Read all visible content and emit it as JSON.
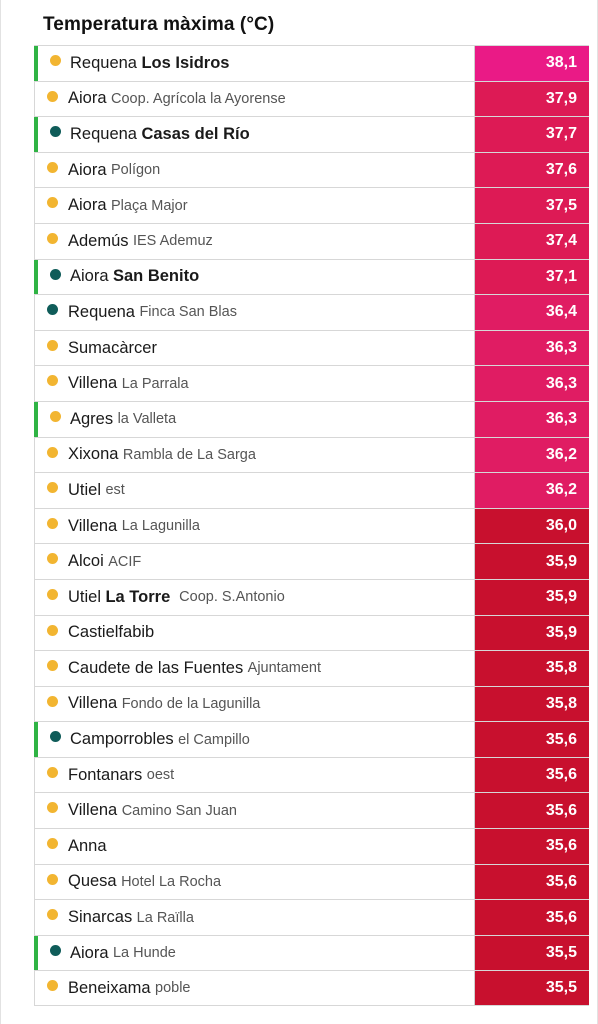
{
  "title": "Temperatura màxima (°C)",
  "colors": {
    "highlight_bar": "#2fb344",
    "marker_yellow": "#f2b531",
    "marker_teal": "#0f5c59",
    "pink_hot": "#e8197b",
    "magenta": "#e01a5a",
    "crimson": "#d81e46",
    "red": "#c8102e"
  },
  "rows": [
    {
      "place": "Requena",
      "detail": "Los Isidros",
      "detail_bold": true,
      "place_bold": false,
      "value": "38,1",
      "marker": "teal-or-yellow:yellow",
      "highlight": true,
      "color": "#ea1a86"
    },
    {
      "place": "Aiora",
      "detail": "Coop. Agrícola la Ayorense",
      "value": "37,9",
      "marker": "yellow",
      "highlight": false,
      "color": "#dd1a55"
    },
    {
      "place": "Requena",
      "detail": "Casas del Río",
      "detail_bold": true,
      "value": "37,7",
      "marker": "teal",
      "highlight": true,
      "color": "#dd1a55"
    },
    {
      "place": "Aiora",
      "detail": "Polígon",
      "value": "37,6",
      "marker": "yellow",
      "highlight": false,
      "color": "#dd1a55"
    },
    {
      "place": "Aiora",
      "detail": "Plaça Major",
      "value": "37,5",
      "marker": "yellow",
      "highlight": false,
      "color": "#dd1a55"
    },
    {
      "place": "Ademús",
      "detail": "IES Ademuz",
      "value": "37,4",
      "marker": "yellow",
      "highlight": false,
      "color": "#dd1a55"
    },
    {
      "place": "Aiora",
      "detail": "San Benito",
      "detail_bold": true,
      "value": "37,1",
      "marker": "teal",
      "highlight": true,
      "color": "#dd1a55"
    },
    {
      "place": "Requena",
      "detail": "Finca San Blas",
      "value": "36,4",
      "marker": "teal",
      "highlight": false,
      "color": "#e01c63"
    },
    {
      "place": "Sumacàrcer",
      "detail": "",
      "value": "36,3",
      "marker": "yellow",
      "highlight": false,
      "color": "#e01c63"
    },
    {
      "place": "Villena",
      "detail": "La Parrala",
      "value": "36,3",
      "marker": "yellow",
      "highlight": false,
      "color": "#e01c63"
    },
    {
      "place": "Agres",
      "detail": "la Valleta",
      "value": "36,3",
      "marker": "yellow",
      "highlight": true,
      "color": "#e01c63"
    },
    {
      "place": "Xixona",
      "detail": "Rambla de La Sarga",
      "value": "36,2",
      "marker": "yellow",
      "highlight": false,
      "color": "#e01c63"
    },
    {
      "place": "Utiel",
      "detail": "est",
      "value": "36,2",
      "marker": "yellow",
      "highlight": false,
      "color": "#e01c63"
    },
    {
      "place": "Villena",
      "detail": "La Lagunilla",
      "value": "36,0",
      "marker": "yellow",
      "highlight": false,
      "color": "#c8102e"
    },
    {
      "place": "Alcoi",
      "detail": "ACIF",
      "value": "35,9",
      "marker": "yellow",
      "highlight": false,
      "color": "#c8102e"
    },
    {
      "place": "Utiel",
      "detail": "La Torre",
      "detail_bold": true,
      "extra": "Coop. S.Antonio",
      "value": "35,9",
      "marker": "yellow",
      "highlight": false,
      "color": "#c8102e"
    },
    {
      "place": "Castielfabib",
      "detail": "",
      "value": "35,9",
      "marker": "yellow",
      "highlight": false,
      "color": "#c8102e"
    },
    {
      "place": "Caudete de las Fuentes",
      "detail": "Ajuntament",
      "value": "35,8",
      "marker": "yellow",
      "highlight": false,
      "color": "#c8102e"
    },
    {
      "place": "Villena",
      "detail": "Fondo de la Lagunilla",
      "value": "35,8",
      "marker": "yellow",
      "highlight": false,
      "color": "#c8102e"
    },
    {
      "place": "Camporrobles",
      "detail": "el Campillo",
      "value": "35,6",
      "marker": "teal",
      "highlight": true,
      "color": "#c8102e"
    },
    {
      "place": "Fontanars",
      "detail": "oest",
      "value": "35,6",
      "marker": "yellow",
      "highlight": false,
      "color": "#c8102e"
    },
    {
      "place": "Villena",
      "detail": "Camino San Juan",
      "value": "35,6",
      "marker": "yellow",
      "highlight": false,
      "color": "#c8102e"
    },
    {
      "place": "Anna",
      "detail": "",
      "value": "35,6",
      "marker": "yellow",
      "highlight": false,
      "color": "#c8102e"
    },
    {
      "place": "Quesa",
      "detail": "Hotel La Rocha",
      "value": "35,6",
      "marker": "yellow",
      "highlight": false,
      "color": "#c8102e"
    },
    {
      "place": "Sinarcas",
      "detail": "La Raïlla",
      "value": "35,6",
      "marker": "yellow",
      "highlight": false,
      "color": "#c8102e"
    },
    {
      "place": "Aiora",
      "detail": "La Hunde",
      "value": "35,5",
      "marker": "teal",
      "highlight": true,
      "color": "#c8102e"
    },
    {
      "place": "Beneixama",
      "detail": "poble",
      "value": "35,5",
      "marker": "yellow",
      "highlight": false,
      "color": "#c8102e"
    }
  ]
}
